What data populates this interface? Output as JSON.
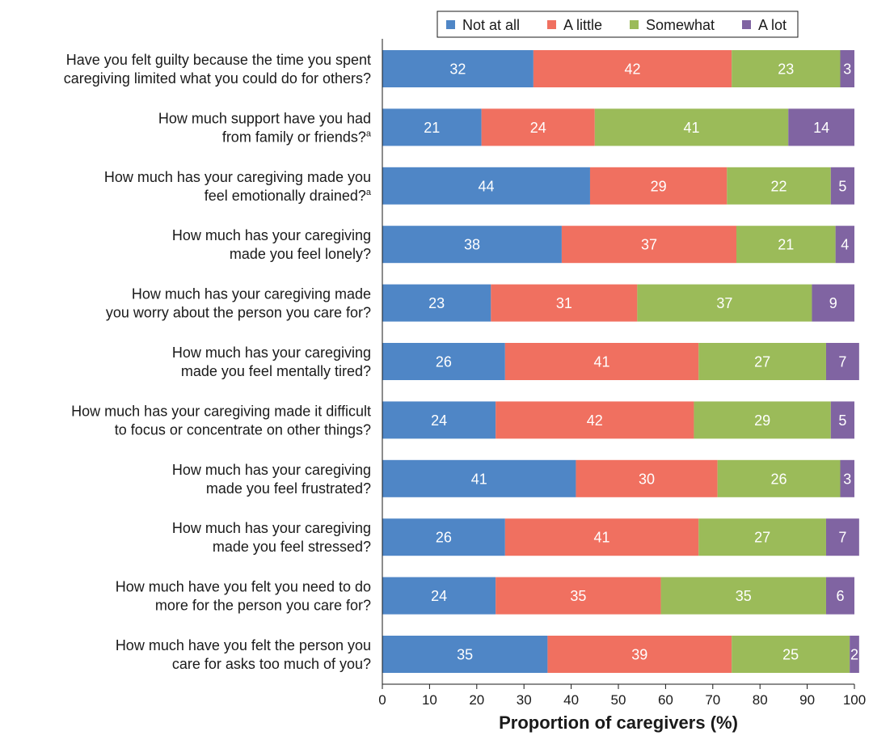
{
  "chart_data": {
    "type": "bar",
    "orientation": "horizontal",
    "stacked": true,
    "xlabel": "Proportion of caregivers (%)",
    "ylabel": "",
    "xlim": [
      0,
      100
    ],
    "xticks": [
      0,
      10,
      20,
      30,
      40,
      50,
      60,
      70,
      80,
      90,
      100
    ],
    "grid": false,
    "legend_position": "top",
    "categories": [
      {
        "lines": [
          "Have you felt guilty because the time you spent",
          "caregiving limited what you could do for others?"
        ],
        "sup": ""
      },
      {
        "lines": [
          "How much support have you had",
          "from family or friends?"
        ],
        "sup": "a"
      },
      {
        "lines": [
          "How much has your caregiving made you",
          "feel emotionally drained?"
        ],
        "sup": "a"
      },
      {
        "lines": [
          "How much has your caregiving",
          "made you feel lonely?"
        ],
        "sup": ""
      },
      {
        "lines": [
          "How much has your caregiving made",
          "you worry about the person you care for?"
        ],
        "sup": ""
      },
      {
        "lines": [
          "How much has your caregiving",
          "made you feel mentally tired?"
        ],
        "sup": ""
      },
      {
        "lines": [
          "How much has your caregiving made it difficult",
          "to focus or concentrate on other things?"
        ],
        "sup": ""
      },
      {
        "lines": [
          "How much has your caregiving",
          "made you feel frustrated?"
        ],
        "sup": ""
      },
      {
        "lines": [
          "How much has your caregiving",
          "made you feel stressed?"
        ],
        "sup": ""
      },
      {
        "lines": [
          "How much have you felt you need to do",
          "more for the person you care for?"
        ],
        "sup": ""
      },
      {
        "lines": [
          "How much have you felt the person you",
          "care for asks too much of you?"
        ],
        "sup": ""
      }
    ],
    "series": [
      {
        "name": "Not at all",
        "color": "#4f86c6",
        "values": [
          32,
          21,
          44,
          38,
          23,
          26,
          24,
          41,
          26,
          24,
          35
        ]
      },
      {
        "name": "A little",
        "color": "#f07060",
        "values": [
          42,
          24,
          29,
          37,
          31,
          41,
          42,
          30,
          41,
          35,
          39
        ]
      },
      {
        "name": "Somewhat",
        "color": "#9bbb59",
        "values": [
          23,
          41,
          22,
          21,
          37,
          27,
          29,
          26,
          27,
          35,
          25
        ]
      },
      {
        "name": "A lot",
        "color": "#8064a2",
        "values": [
          3,
          14,
          5,
          4,
          9,
          7,
          5,
          3,
          7,
          6,
          2
        ]
      }
    ]
  }
}
